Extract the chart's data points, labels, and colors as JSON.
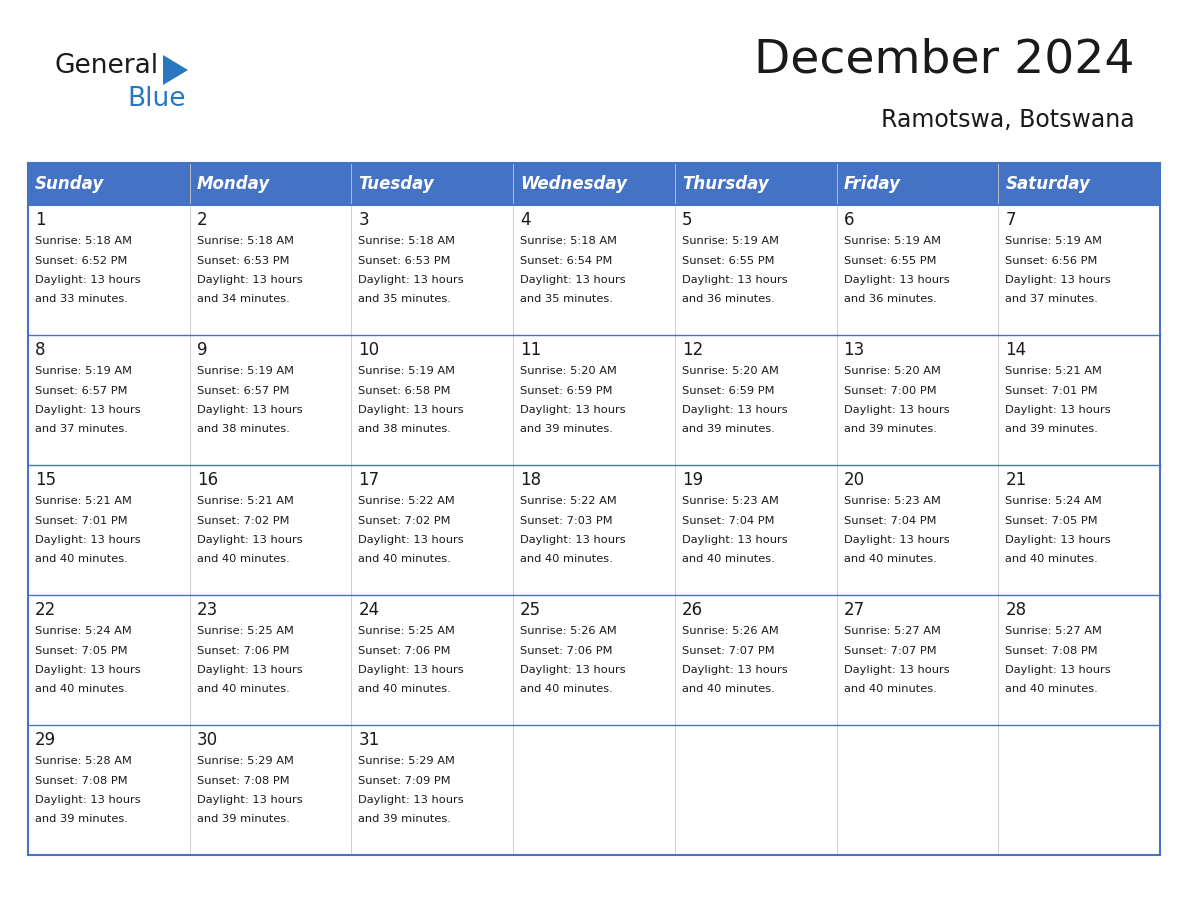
{
  "title": "December 2024",
  "subtitle": "Ramotswa, Botswana",
  "header_bg": "#4472C4",
  "header_text_color": "#FFFFFF",
  "cell_bg": "#FFFFFF",
  "row_sep_color": "#4472C4",
  "col_sep_color": "#C0C0C0",
  "border_color": "#4472C4",
  "days_of_week": [
    "Sunday",
    "Monday",
    "Tuesday",
    "Wednesday",
    "Thursday",
    "Friday",
    "Saturday"
  ],
  "calendar_data": [
    [
      {
        "day": 1,
        "sunrise": "5:18 AM",
        "sunset": "6:52 PM",
        "daylight": "13 hours and 33 minutes"
      },
      {
        "day": 2,
        "sunrise": "5:18 AM",
        "sunset": "6:53 PM",
        "daylight": "13 hours and 34 minutes"
      },
      {
        "day": 3,
        "sunrise": "5:18 AM",
        "sunset": "6:53 PM",
        "daylight": "13 hours and 35 minutes"
      },
      {
        "day": 4,
        "sunrise": "5:18 AM",
        "sunset": "6:54 PM",
        "daylight": "13 hours and 35 minutes"
      },
      {
        "day": 5,
        "sunrise": "5:19 AM",
        "sunset": "6:55 PM",
        "daylight": "13 hours and 36 minutes"
      },
      {
        "day": 6,
        "sunrise": "5:19 AM",
        "sunset": "6:55 PM",
        "daylight": "13 hours and 36 minutes"
      },
      {
        "day": 7,
        "sunrise": "5:19 AM",
        "sunset": "6:56 PM",
        "daylight": "13 hours and 37 minutes"
      }
    ],
    [
      {
        "day": 8,
        "sunrise": "5:19 AM",
        "sunset": "6:57 PM",
        "daylight": "13 hours and 37 minutes"
      },
      {
        "day": 9,
        "sunrise": "5:19 AM",
        "sunset": "6:57 PM",
        "daylight": "13 hours and 38 minutes"
      },
      {
        "day": 10,
        "sunrise": "5:19 AM",
        "sunset": "6:58 PM",
        "daylight": "13 hours and 38 minutes"
      },
      {
        "day": 11,
        "sunrise": "5:20 AM",
        "sunset": "6:59 PM",
        "daylight": "13 hours and 39 minutes"
      },
      {
        "day": 12,
        "sunrise": "5:20 AM",
        "sunset": "6:59 PM",
        "daylight": "13 hours and 39 minutes"
      },
      {
        "day": 13,
        "sunrise": "5:20 AM",
        "sunset": "7:00 PM",
        "daylight": "13 hours and 39 minutes"
      },
      {
        "day": 14,
        "sunrise": "5:21 AM",
        "sunset": "7:01 PM",
        "daylight": "13 hours and 39 minutes"
      }
    ],
    [
      {
        "day": 15,
        "sunrise": "5:21 AM",
        "sunset": "7:01 PM",
        "daylight": "13 hours and 40 minutes"
      },
      {
        "day": 16,
        "sunrise": "5:21 AM",
        "sunset": "7:02 PM",
        "daylight": "13 hours and 40 minutes"
      },
      {
        "day": 17,
        "sunrise": "5:22 AM",
        "sunset": "7:02 PM",
        "daylight": "13 hours and 40 minutes"
      },
      {
        "day": 18,
        "sunrise": "5:22 AM",
        "sunset": "7:03 PM",
        "daylight": "13 hours and 40 minutes"
      },
      {
        "day": 19,
        "sunrise": "5:23 AM",
        "sunset": "7:04 PM",
        "daylight": "13 hours and 40 minutes"
      },
      {
        "day": 20,
        "sunrise": "5:23 AM",
        "sunset": "7:04 PM",
        "daylight": "13 hours and 40 minutes"
      },
      {
        "day": 21,
        "sunrise": "5:24 AM",
        "sunset": "7:05 PM",
        "daylight": "13 hours and 40 minutes"
      }
    ],
    [
      {
        "day": 22,
        "sunrise": "5:24 AM",
        "sunset": "7:05 PM",
        "daylight": "13 hours and 40 minutes"
      },
      {
        "day": 23,
        "sunrise": "5:25 AM",
        "sunset": "7:06 PM",
        "daylight": "13 hours and 40 minutes"
      },
      {
        "day": 24,
        "sunrise": "5:25 AM",
        "sunset": "7:06 PM",
        "daylight": "13 hours and 40 minutes"
      },
      {
        "day": 25,
        "sunrise": "5:26 AM",
        "sunset": "7:06 PM",
        "daylight": "13 hours and 40 minutes"
      },
      {
        "day": 26,
        "sunrise": "5:26 AM",
        "sunset": "7:07 PM",
        "daylight": "13 hours and 40 minutes"
      },
      {
        "day": 27,
        "sunrise": "5:27 AM",
        "sunset": "7:07 PM",
        "daylight": "13 hours and 40 minutes"
      },
      {
        "day": 28,
        "sunrise": "5:27 AM",
        "sunset": "7:08 PM",
        "daylight": "13 hours and 40 minutes"
      }
    ],
    [
      {
        "day": 29,
        "sunrise": "5:28 AM",
        "sunset": "7:08 PM",
        "daylight": "13 hours and 39 minutes"
      },
      {
        "day": 30,
        "sunrise": "5:29 AM",
        "sunset": "7:08 PM",
        "daylight": "13 hours and 39 minutes"
      },
      {
        "day": 31,
        "sunrise": "5:29 AM",
        "sunset": "7:09 PM",
        "daylight": "13 hours and 39 minutes"
      },
      null,
      null,
      null,
      null
    ]
  ],
  "logo_color_general": "#1a1a1a",
  "logo_color_blue": "#2878C0",
  "logo_triangle_color": "#2878C0"
}
